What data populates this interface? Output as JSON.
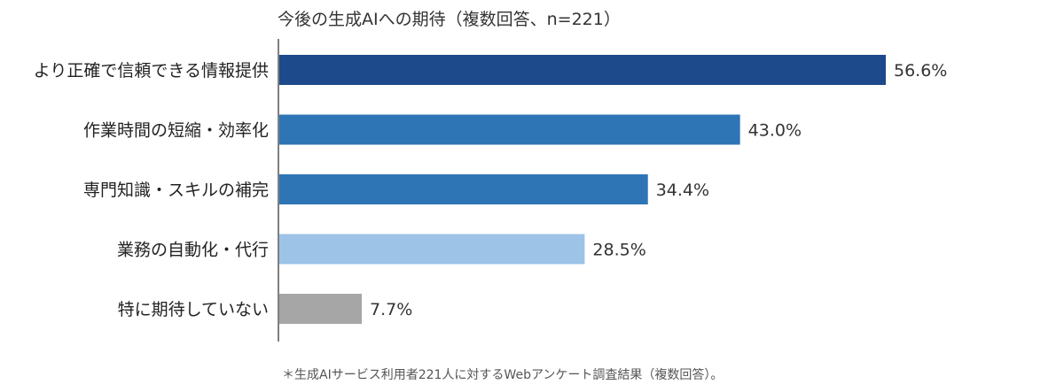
{
  "chart_data": {
    "type": "bar",
    "orientation": "horizontal",
    "title": "今後の生成AIへの期待（複数回答、n=221）",
    "categories": [
      "より正確で信頼できる情報提供",
      "作業時間の短縮・効率化",
      "専門知識・スキルの補完",
      "業務の自動化・代行",
      "特に期待していない"
    ],
    "values": [
      56.6,
      43.0,
      34.4,
      28.5,
      7.7
    ],
    "value_labels": [
      "56.6%",
      "43.0%",
      "34.4%",
      "28.5%",
      "7.7%"
    ],
    "bar_colors": [
      "#1c4a8a",
      "#2e75b6",
      "#2e75b6",
      "#9dc3e6",
      "#a6a6a6"
    ],
    "xlim": [
      0,
      60
    ],
    "grid": false,
    "note": "＊生成AIサービス利用者221人に対するWebアンケート調査結果（複数回答）。"
  }
}
